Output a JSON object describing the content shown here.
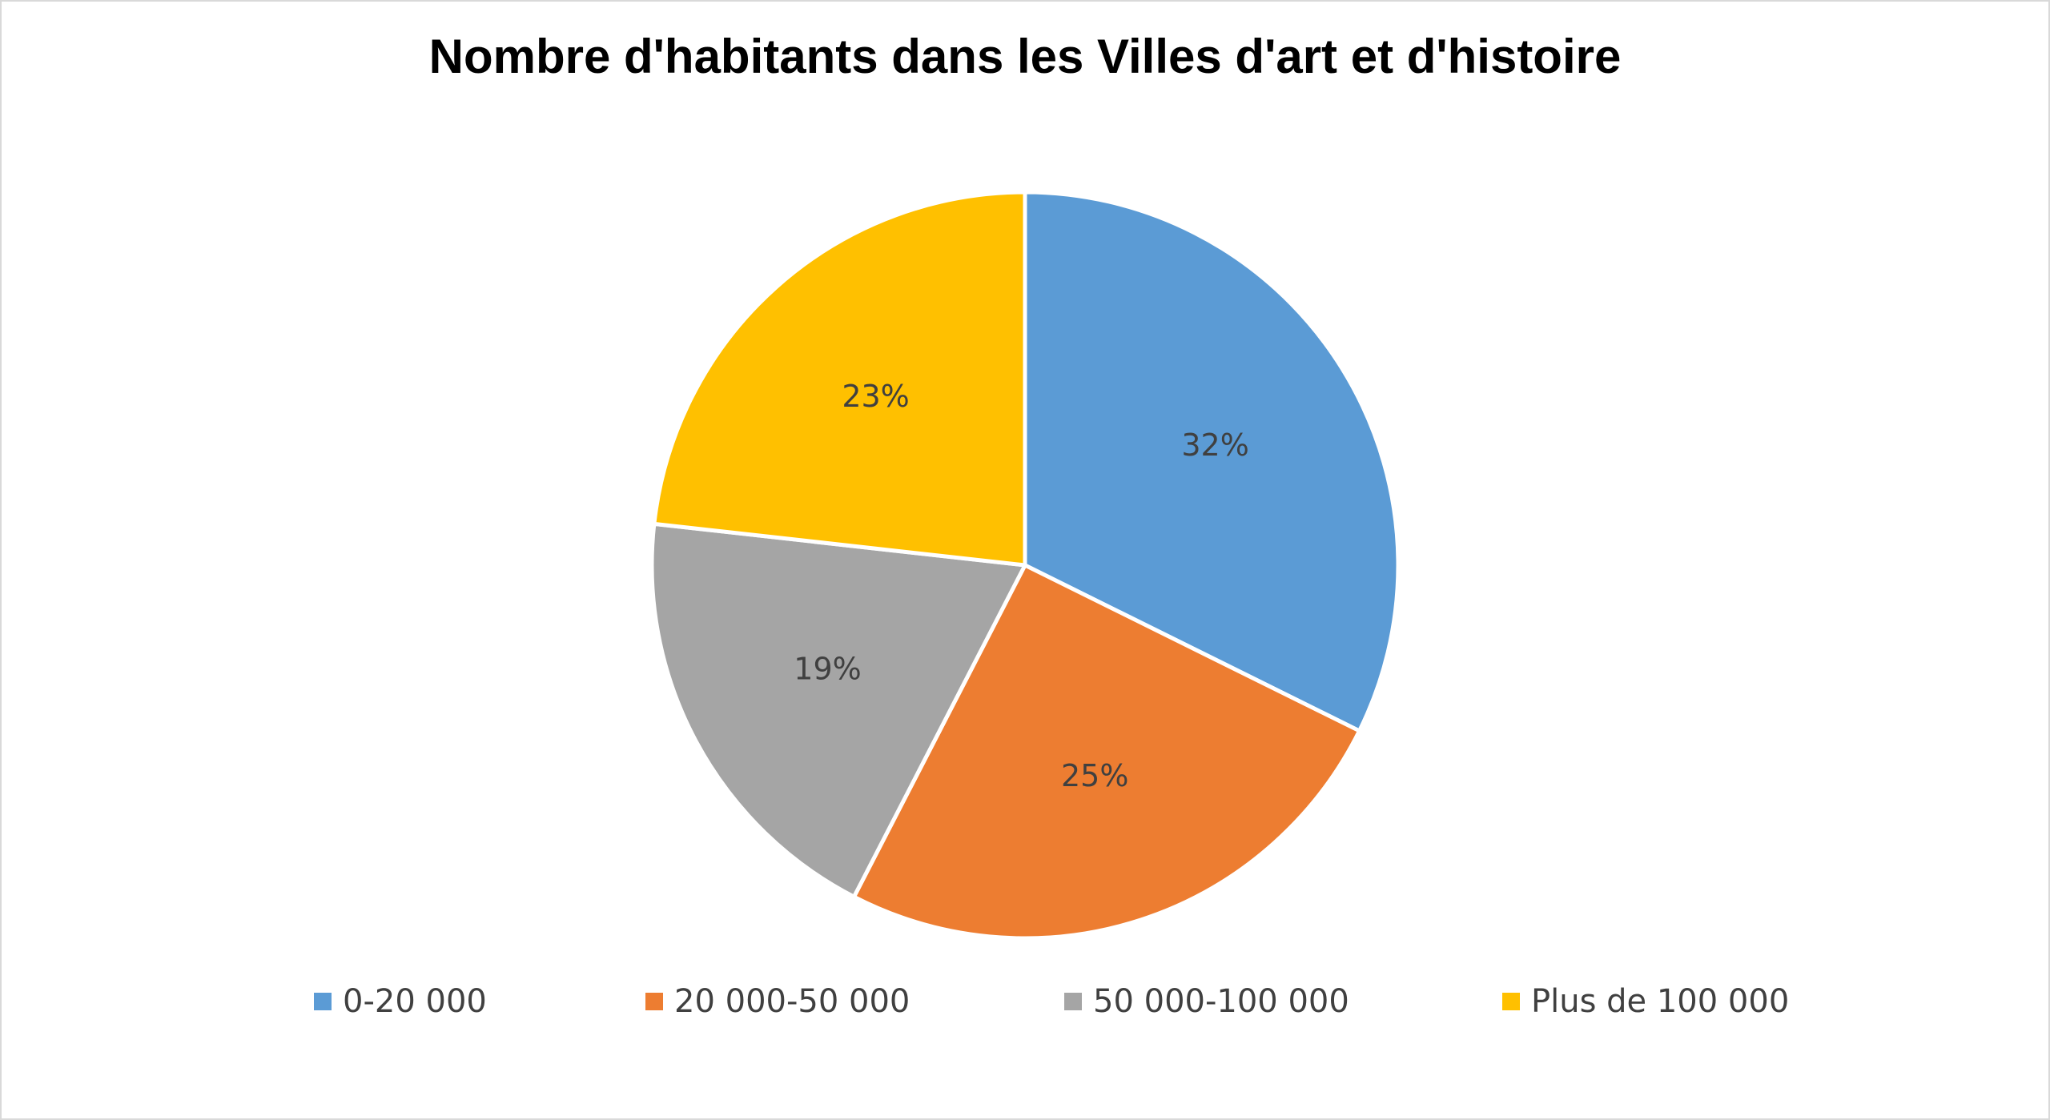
{
  "chart_data": {
    "type": "pie",
    "title": "Nombre d'habitants dans les Villes d'art et d'histoire",
    "categories": [
      "0-20 000",
      "20 000-50 000",
      "50 000-100 000",
      "Plus de 100 000"
    ],
    "values": [
      32,
      25,
      19,
      23
    ],
    "data_labels": [
      "32%",
      "25%",
      "19%",
      "23%"
    ],
    "colors": [
      "#5B9BD5",
      "#ED7D31",
      "#A5A5A5",
      "#FFC000"
    ],
    "legend_placement": "bottom",
    "start_angle_deg": 0,
    "direction": "clockwise"
  }
}
